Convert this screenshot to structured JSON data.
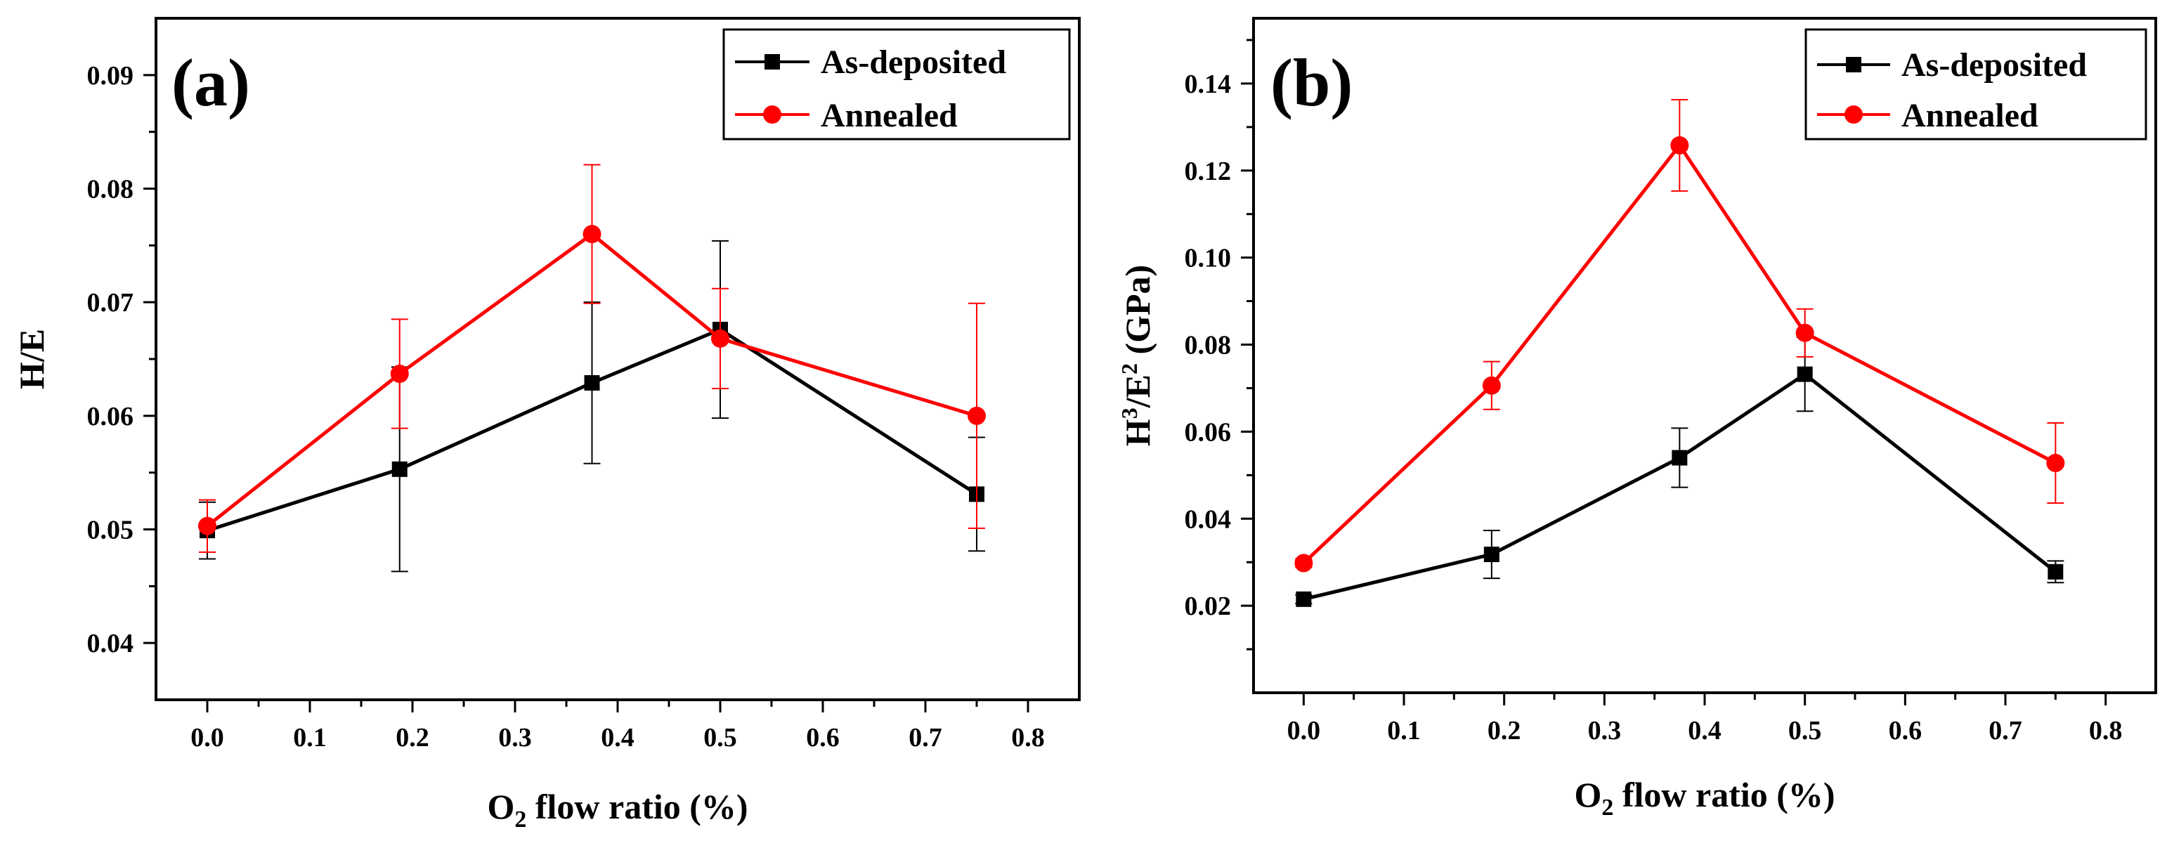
{
  "chart_data": [
    {
      "type": "line",
      "panel_label": "(a)",
      "xlabel": "O2 flow ratio (%)",
      "xlabel_parts": {
        "pre": "O",
        "sub": "2",
        "post": " flow ratio (%)"
      },
      "ylabel": "H/E",
      "ylabel_parts": {
        "a": "H/E"
      },
      "xlim": [
        -0.05,
        0.85
      ],
      "ylim": [
        0.035,
        0.095
      ],
      "xticks": [
        0.0,
        0.1,
        0.2,
        0.3,
        0.4,
        0.5,
        0.6,
        0.7,
        0.8
      ],
      "xtick_labels": [
        "0.0",
        "0.1",
        "0.2",
        "0.3",
        "0.4",
        "0.5",
        "0.6",
        "0.7",
        "0.8"
      ],
      "yticks": [
        0.04,
        0.05,
        0.06,
        0.07,
        0.08,
        0.09
      ],
      "ytick_labels": [
        "0.04",
        "0.05",
        "0.06",
        "0.07",
        "0.08",
        "0.09"
      ],
      "grid": false,
      "legend_position": "top-right",
      "series": [
        {
          "name": "As-deposited",
          "color": "#000000",
          "marker": "square",
          "x": [
            0.0,
            0.1875,
            0.375,
            0.5,
            0.75
          ],
          "y": [
            0.0499,
            0.0553,
            0.0629,
            0.0676,
            0.0531
          ],
          "err": [
            0.0025,
            0.009,
            0.0071,
            0.0078,
            0.005
          ]
        },
        {
          "name": "Annealed",
          "color": "#ff0000",
          "marker": "circle",
          "x": [
            0.0,
            0.1875,
            0.375,
            0.5,
            0.75
          ],
          "y": [
            0.0503,
            0.0637,
            0.076,
            0.0668,
            0.06
          ],
          "err": [
            0.0023,
            0.0048,
            0.0061,
            0.0044,
            0.0099
          ]
        }
      ]
    },
    {
      "type": "line",
      "panel_label": "(b)",
      "xlabel": "O2 flow ratio (%)",
      "xlabel_parts": {
        "pre": "O",
        "sub": "2",
        "post": " flow ratio (%)"
      },
      "ylabel": "H3/E2 (GPa)",
      "ylabel_parts": {
        "a": "H",
        "b": "3",
        "c": "/E",
        "d": "2",
        "e": " (GPa)"
      },
      "xlim": [
        -0.05,
        0.85
      ],
      "ylim": [
        0.0,
        0.155
      ],
      "xticks": [
        0.0,
        0.1,
        0.2,
        0.3,
        0.4,
        0.5,
        0.6,
        0.7,
        0.8
      ],
      "xtick_labels": [
        "0.0",
        "0.1",
        "0.2",
        "0.3",
        "0.4",
        "0.5",
        "0.6",
        "0.7",
        "0.8"
      ],
      "yticks": [
        0.02,
        0.04,
        0.06,
        0.08,
        0.1,
        0.12,
        0.14
      ],
      "ytick_labels": [
        "0.02",
        "0.04",
        "0.06",
        "0.08",
        "0.10",
        "0.12",
        "0.14"
      ],
      "grid": false,
      "legend_position": "top-right",
      "series": [
        {
          "name": "As-deposited",
          "color": "#000000",
          "marker": "square",
          "x": [
            0.0,
            0.1875,
            0.375,
            0.5,
            0.75
          ],
          "y": [
            0.0215,
            0.0318,
            0.054,
            0.0732,
            0.0278
          ],
          "err": [
            0.001,
            0.0055,
            0.0068,
            0.0085,
            0.0025
          ]
        },
        {
          "name": "Annealed",
          "color": "#ff0000",
          "marker": "circle",
          "x": [
            0.0,
            0.1875,
            0.375,
            0.5,
            0.75
          ],
          "y": [
            0.0298,
            0.0706,
            0.1258,
            0.0827,
            0.0528
          ],
          "err": [
            0.001,
            0.0055,
            0.0105,
            0.0055,
            0.0092
          ]
        }
      ]
    }
  ]
}
